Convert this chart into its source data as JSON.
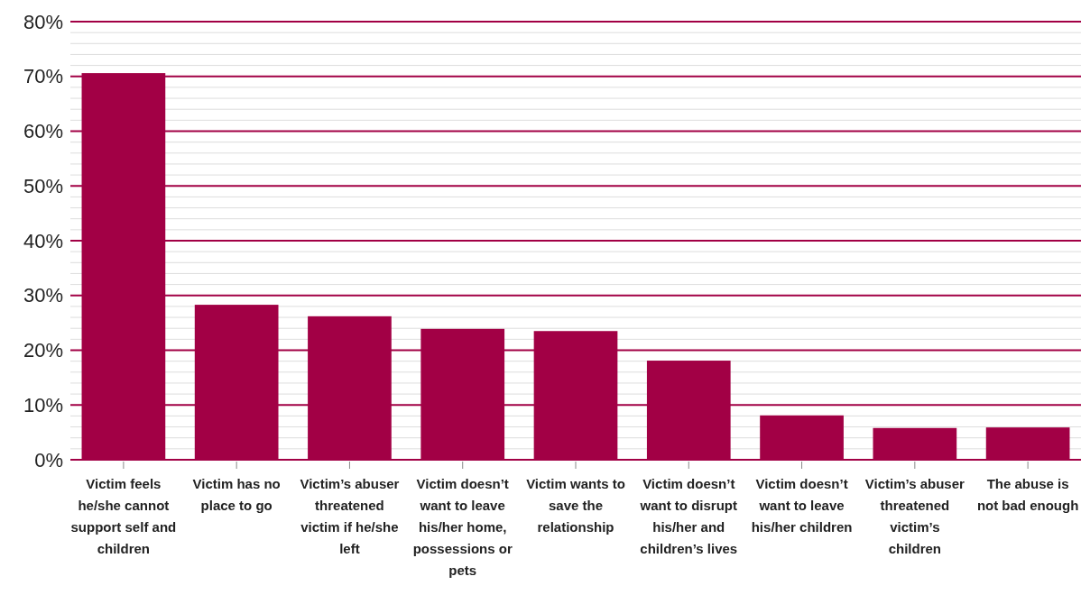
{
  "chart_data": {
    "type": "bar",
    "categories": [
      "Victim feels he/she cannot support self and children",
      "Victim has no place to go",
      "Victim’s abuser threatened victim if he/she left",
      "Victim doesn’t want to leave his/her home, possessions or pets",
      "Victim wants to save the relationship",
      "Victim doesn’t want to disrupt his/her and children’s lives",
      "Victim doesn’t want to leave his/her children",
      "Victim’s abuser threatened victim’s children",
      "The abuse is not bad enough"
    ],
    "values": [
      70.6,
      28.3,
      26.2,
      23.9,
      23.5,
      18.1,
      8.1,
      5.8,
      5.9
    ],
    "color": "#a20045",
    "ylim": [
      0,
      80
    ],
    "yticks": [
      {
        "value": 0,
        "label": "0%"
      },
      {
        "value": 2,
        "label": null
      },
      {
        "value": 4,
        "label": null
      },
      {
        "value": 6,
        "label": null
      },
      {
        "value": 8,
        "label": null
      },
      {
        "value": 10,
        "label": "10%"
      },
      {
        "value": 12,
        "label": null
      },
      {
        "value": 14,
        "label": null
      },
      {
        "value": 16,
        "label": null
      },
      {
        "value": 18,
        "label": null
      },
      {
        "value": 20,
        "label": "20%"
      },
      {
        "value": 22,
        "label": null
      },
      {
        "value": 24,
        "label": null
      },
      {
        "value": 26,
        "label": null
      },
      {
        "value": 28,
        "label": null
      },
      {
        "value": 30,
        "label": "30%"
      },
      {
        "value": 32,
        "label": null
      },
      {
        "value": 34,
        "label": null
      },
      {
        "value": 36,
        "label": null
      },
      {
        "value": 38,
        "label": null
      },
      {
        "value": 40,
        "label": "40%"
      },
      {
        "value": 42,
        "label": null
      },
      {
        "value": 44,
        "label": null
      },
      {
        "value": 46,
        "label": null
      },
      {
        "value": 48,
        "label": null
      },
      {
        "value": 50,
        "label": "50%"
      },
      {
        "value": 52,
        "label": null
      },
      {
        "value": 54,
        "label": null
      },
      {
        "value": 56,
        "label": null
      },
      {
        "value": 58,
        "label": null
      },
      {
        "value": 60,
        "label": "60%"
      },
      {
        "value": 62,
        "label": null
      },
      {
        "value": 64,
        "label": null
      },
      {
        "value": 66,
        "label": null
      },
      {
        "value": 68,
        "label": null
      },
      {
        "value": 70,
        "label": "70%"
      },
      {
        "value": 72,
        "label": null
      },
      {
        "value": 74,
        "label": null
      },
      {
        "value": 76,
        "label": null
      },
      {
        "value": 78,
        "label": null
      },
      {
        "value": 80,
        "label": "80%"
      }
    ],
    "grid": true
  }
}
